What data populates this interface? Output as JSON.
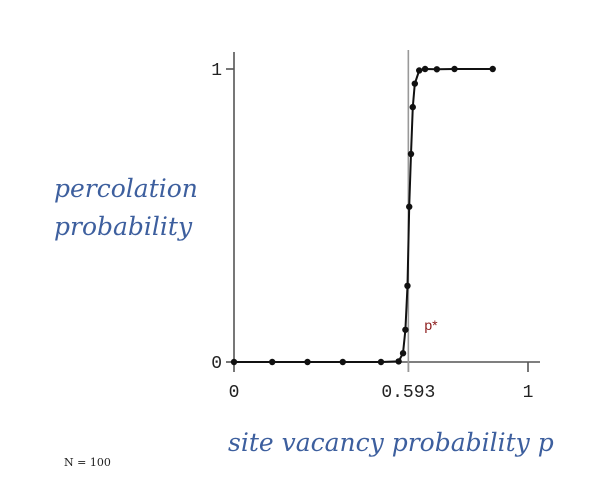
{
  "chart_data": {
    "type": "line",
    "title": "",
    "ylabel_lines": [
      "percolation",
      "probability"
    ],
    "xlabel": "site vacancy probability p",
    "note": "N = 100",
    "critical_label": "p*",
    "critical_x": 0.593,
    "xlim": [
      0,
      1
    ],
    "ylim": [
      0,
      1
    ],
    "x_ticks": [
      {
        "value": 0,
        "label": "0"
      },
      {
        "value": 0.593,
        "label": "0.593"
      },
      {
        "value": 1,
        "label": "1"
      }
    ],
    "y_ticks": [
      {
        "value": 0,
        "label": "0"
      },
      {
        "value": 1,
        "label": "1"
      }
    ],
    "series": [
      {
        "points": [
          [
            0.0,
            0.0
          ],
          [
            0.13,
            0.0
          ],
          [
            0.25,
            0.0
          ],
          [
            0.37,
            0.0
          ],
          [
            0.5,
            0.0
          ],
          [
            0.56,
            0.002
          ],
          [
            0.575,
            0.03
          ],
          [
            0.583,
            0.11
          ],
          [
            0.59,
            0.26
          ],
          [
            0.596,
            0.53
          ],
          [
            0.602,
            0.71
          ],
          [
            0.608,
            0.87
          ],
          [
            0.615,
            0.95
          ],
          [
            0.63,
            0.995
          ],
          [
            0.65,
            1.0
          ],
          [
            0.69,
            0.999
          ],
          [
            0.75,
            1.0
          ],
          [
            0.88,
            1.0
          ]
        ],
        "color": "#111111"
      }
    ],
    "colors": {
      "axis": "#555555",
      "critical_line": "#999999",
      "critical_label": "#8b1a1a",
      "label": "#3d5f9e"
    }
  }
}
